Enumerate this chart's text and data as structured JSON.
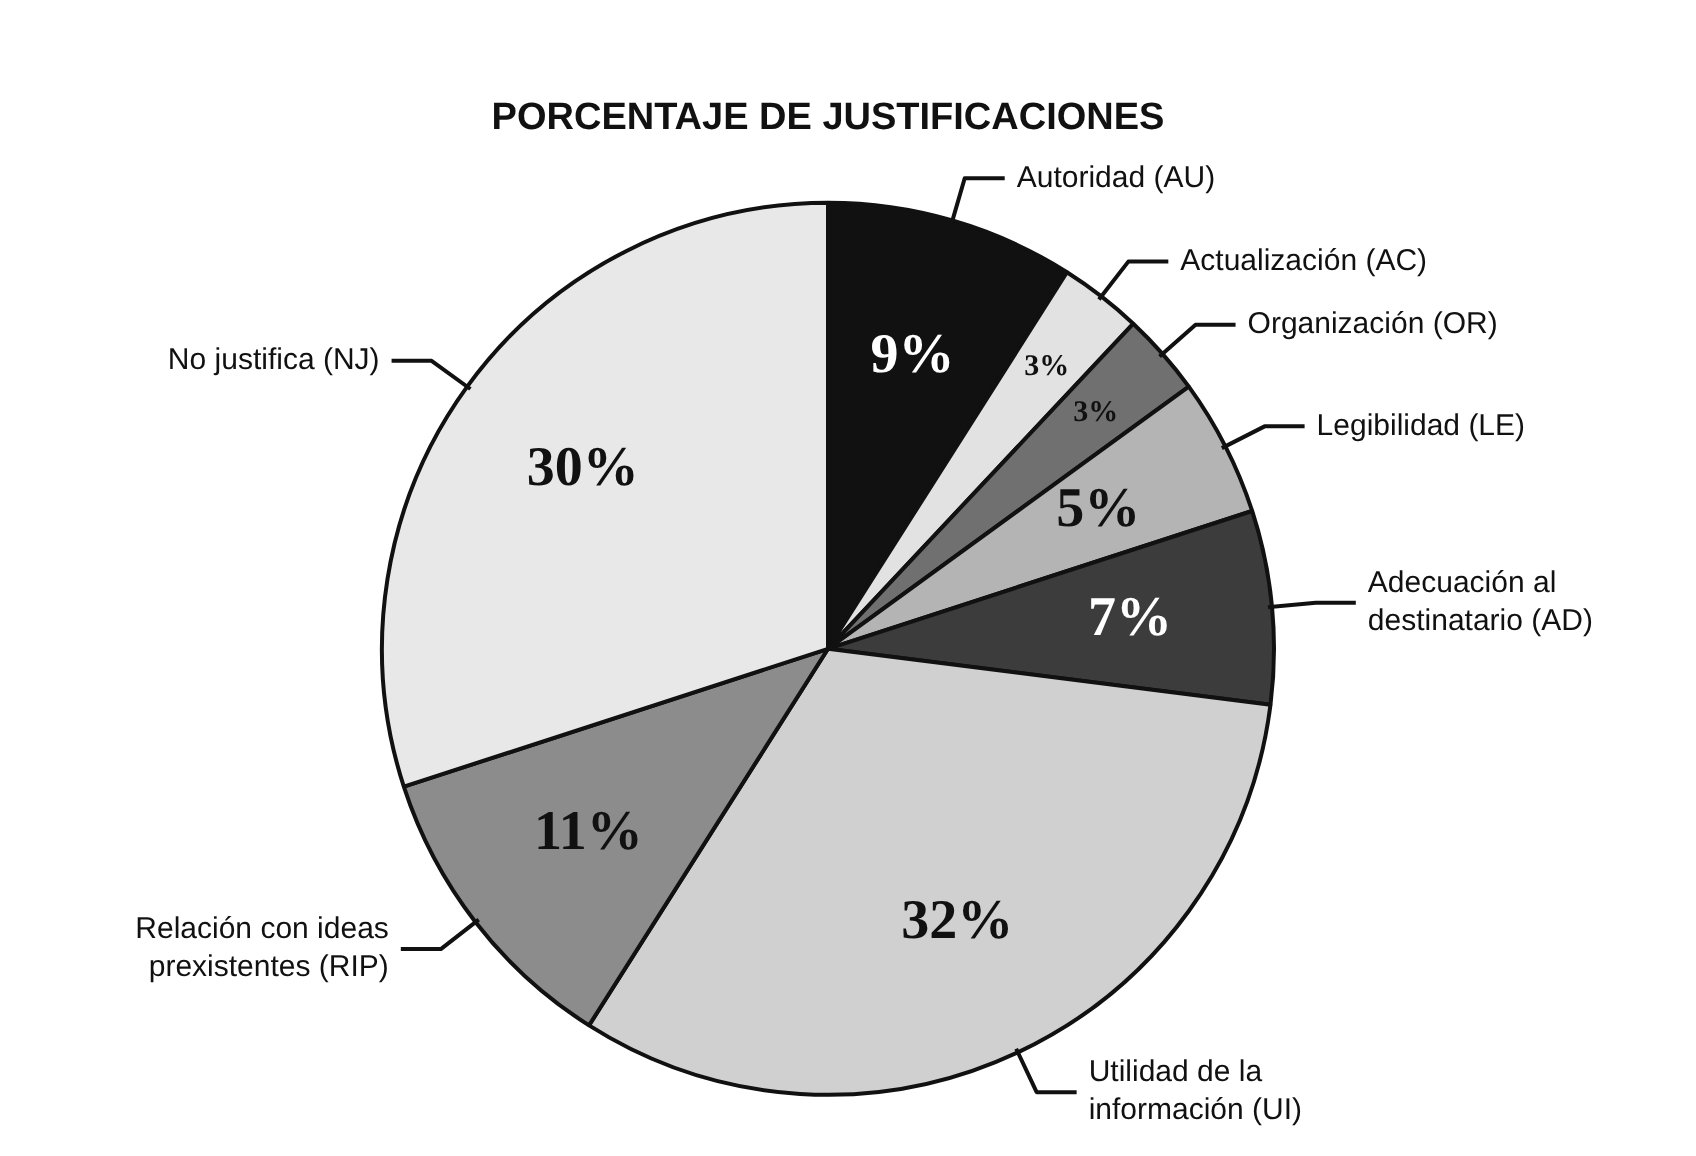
{
  "chart_data": {
    "type": "pie",
    "title": "PORCENTAJE DE JUSTIFICACIONES",
    "categories": [
      "Autoridad (AU)",
      "Actualización (AC)",
      "Organización (OR)",
      "Legibilidad (LE)",
      "Adecuación al destinatario (AD)",
      "Utilidad de la información (UI)",
      "Relación con ideas prexistentes (RIP)",
      "No justifica (NJ)"
    ],
    "values": [
      9,
      3,
      3,
      5,
      7,
      32,
      11,
      30
    ],
    "colors": [
      "#111111",
      "#e2e2e2",
      "#707070",
      "#b4b4b4",
      "#3c3c3c",
      "#d0d0d0",
      "#8c8c8c",
      "#e8e8e8"
    ],
    "value_labels": [
      "9%",
      "3%",
      "3%",
      "5%",
      "7%",
      "32%",
      "11%",
      "30%"
    ],
    "legend": false
  }
}
